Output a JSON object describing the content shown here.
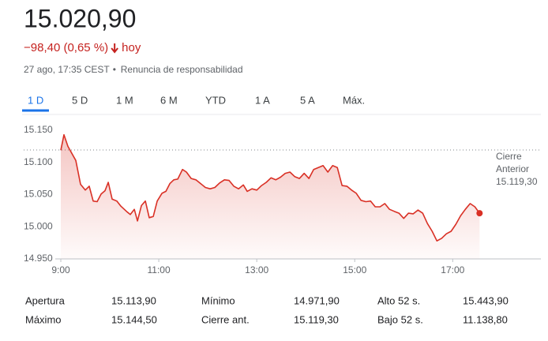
{
  "header": {
    "price": "15.020,90",
    "change": "−98,40 (0,65 %)",
    "period": "hoy",
    "timestamp": "27 ago, 17:35 CEST",
    "disclaimer": "Renuncia de responsabilidad"
  },
  "tabs": [
    "1 D",
    "5 D",
    "1 M",
    "6 M",
    "YTD",
    "1 A",
    "5 A",
    "Máx."
  ],
  "chart_data": {
    "type": "line",
    "color": "#d93025",
    "x": [
      9.0,
      9.065,
      9.145,
      9.306,
      9.403,
      9.5,
      9.581,
      9.661,
      9.742,
      9.823,
      9.903,
      9.968,
      10.048,
      10.145,
      10.226,
      10.339,
      10.419,
      10.5,
      10.565,
      10.645,
      10.726,
      10.806,
      10.887,
      10.968,
      11.065,
      11.145,
      11.226,
      11.306,
      11.387,
      11.484,
      11.565,
      11.661,
      11.758,
      11.855,
      11.952,
      12.048,
      12.145,
      12.242,
      12.339,
      12.435,
      12.532,
      12.629,
      12.726,
      12.806,
      12.903,
      13.0,
      13.097,
      13.194,
      13.29,
      13.387,
      13.484,
      13.581,
      13.677,
      13.774,
      13.871,
      13.968,
      14.065,
      14.161,
      14.258,
      14.355,
      14.452,
      14.548,
      14.645,
      14.742,
      14.839,
      14.935,
      15.032,
      15.129,
      15.226,
      15.323,
      15.419,
      15.516,
      15.613,
      15.71,
      15.806,
      15.903,
      16.0,
      16.097,
      16.194,
      16.29,
      16.387,
      16.484,
      16.581,
      16.677,
      16.774,
      16.871,
      16.968,
      17.065,
      17.161,
      17.258,
      17.355,
      17.452,
      17.548
    ],
    "values": [
      15119,
      15143,
      15125,
      15103,
      15066,
      15057,
      15063,
      15040,
      15039,
      15051,
      15056,
      15069,
      15043,
      15040,
      15032,
      15024,
      15019,
      15027,
      15009,
      15033,
      15040,
      15014,
      15016,
      15040,
      15052,
      15055,
      15067,
      15073,
      15074,
      15089,
      15085,
      15075,
      15073,
      15067,
      15061,
      15059,
      15061,
      15068,
      15073,
      15072,
      15063,
      15059,
      15065,
      15055,
      15059,
      15057,
      15064,
      15069,
      15076,
      15073,
      15077,
      15083,
      15085,
      15078,
      15075,
      15083,
      15075,
      15089,
      15092,
      15095,
      15085,
      15095,
      15092,
      15064,
      15063,
      15057,
      15052,
      15041,
      15039,
      15040,
      15031,
      15031,
      15036,
      15027,
      15024,
      15021,
      15013,
      15021,
      15020,
      15026,
      15021,
      15005,
      14993,
      14978,
      14982,
      14989,
      14993,
      15004,
      15017,
      15027,
      15036,
      15031,
      15021
    ],
    "xlim": [
      9,
      18.8
    ],
    "xticks": [
      {
        "value": 9,
        "label": "9:00"
      },
      {
        "value": 11,
        "label": "11:00"
      },
      {
        "value": 13,
        "label": "13:00"
      },
      {
        "value": 15,
        "label": "15:00"
      },
      {
        "value": 17,
        "label": "17:00"
      }
    ],
    "ylim": [
      14950,
      15160
    ],
    "yticks": [
      {
        "value": 14950,
        "label": "14.950"
      },
      {
        "value": 15000,
        "label": "15.000"
      },
      {
        "value": 15050,
        "label": "15.050"
      },
      {
        "value": 15100,
        "label": "15.100"
      },
      {
        "value": 15150,
        "label": "15.150"
      }
    ],
    "previous_close": {
      "value": 15119.3,
      "label": "15.119,30"
    },
    "previous_close_title": "Cierre Anterior"
  },
  "stats": [
    [
      {
        "label": "Apertura",
        "value": "15.113,90"
      },
      {
        "label": "Mínimo",
        "value": "14.971,90"
      },
      {
        "label": "Alto 52 s.",
        "value": "15.443,90"
      }
    ],
    [
      {
        "label": "Máximo",
        "value": "15.144,50"
      },
      {
        "label": "Cierre ant.",
        "value": "15.119,30"
      },
      {
        "label": "Bajo 52 s.",
        "value": "11.138,80"
      }
    ]
  ]
}
